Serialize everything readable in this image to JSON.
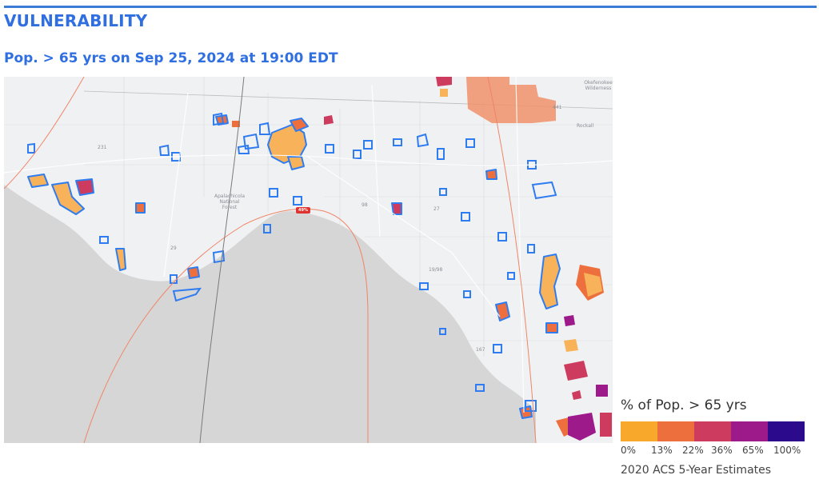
{
  "header": {
    "title": "VULNERABILITY",
    "subtitle": "Pop. > 65 yrs on Sep 25, 2024 at 19:00 EDT"
  },
  "map": {
    "labels": {
      "forest": "Apalachicola National Forest",
      "wilderness": "Okefenokee Wilderness",
      "town": "Rockall",
      "track_marker": "49%"
    },
    "highway_shields": [
      "231",
      "29",
      "98",
      "27",
      "19/98",
      "167",
      "441"
    ],
    "colors": {
      "land": "#f0f1f3",
      "water": "#d6d6d6",
      "outline": "#2f7cf0",
      "track": "#f08567",
      "track_center": "#7a7a7a"
    }
  },
  "legend": {
    "title": "% of Pop. > 65 yrs",
    "bins": [
      {
        "color": "#f8a82a"
      },
      {
        "color": "#ee6f3e"
      },
      {
        "color": "#cd3c5e"
      },
      {
        "color": "#9c1a8a"
      },
      {
        "color": "#2b0b8c"
      }
    ],
    "ticks": [
      "0%",
      "13%",
      "22%",
      "36%",
      "65%",
      "100%"
    ],
    "source_note": "2020 ACS 5-Year Estimates"
  }
}
